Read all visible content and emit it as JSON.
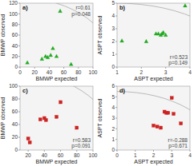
{
  "chart_data": [
    {
      "type": "scatter",
      "title": "a)",
      "xlabel": "BMWP expected",
      "ylabel": "BMWP observed",
      "x": [
        10,
        30,
        35,
        38,
        42,
        45,
        50,
        55,
        70
      ],
      "values": [
        8,
        15,
        20,
        18,
        22,
        35,
        20,
        105,
        5
      ],
      "color": "#22aa22",
      "marker": "triangle",
      "xlim": [
        0,
        100
      ],
      "ylim": [
        0,
        120
      ],
      "xticks": [
        0,
        20,
        40,
        60,
        80,
        100
      ],
      "yticks": [
        0,
        20,
        40,
        60,
        80,
        100,
        120
      ],
      "annotations": [
        "r=0.61",
        "p=0.048"
      ],
      "arc": {
        "cx": 0,
        "cy": 0,
        "radius": 130
      }
    },
    {
      "type": "scatter",
      "title": "b)",
      "xlabel": "ASPT expected",
      "ylabel": "ASPT observed",
      "x": [
        1.2,
        2.2,
        2.6,
        2.7,
        2.8,
        2.85,
        2.9,
        3.0,
        3.8
      ],
      "values": [
        2.05,
        2.0,
        2.6,
        2.6,
        2.5,
        2.6,
        2.7,
        2.5,
        4.8
      ],
      "color": "#22aa22",
      "marker": "triangle",
      "xlim": [
        1,
        4
      ],
      "ylim": [
        0,
        5
      ],
      "xticks": [
        1,
        2,
        3,
        4
      ],
      "yticks": [
        0,
        1,
        2,
        3,
        4,
        5
      ],
      "annotations": [
        "r=0.523",
        "p=0.149"
      ],
      "arc": {
        "cx": 1,
        "cy": 0,
        "radius": 5.0
      }
    },
    {
      "type": "scatter",
      "title": "c)",
      "xlabel": "BMWP expected",
      "ylabel": "BMWP observed",
      "x": [
        20,
        22,
        35,
        40,
        42,
        55,
        60,
        80
      ],
      "values": [
        18,
        12,
        48,
        50,
        47,
        52,
        75,
        35
      ],
      "color": "#cc2222",
      "marker": "square",
      "xlim": [
        10,
        100
      ],
      "ylim": [
        0,
        100
      ],
      "xticks": [
        20,
        40,
        60,
        80,
        100
      ],
      "yticks": [
        0,
        20,
        40,
        60,
        80,
        100
      ],
      "annotations": [
        "r=0.583",
        "p=0.091"
      ],
      "arc": {
        "cx": 10,
        "cy": 0,
        "radius": 120
      }
    },
    {
      "type": "scatter",
      "title": "d)",
      "xlabel": "ASPT expected",
      "ylabel": "ASPT observed",
      "x": [
        2.0,
        2.2,
        2.4,
        2.6,
        2.7,
        2.8,
        3.0,
        3.1,
        3.5
      ],
      "values": [
        2.3,
        2.2,
        2.1,
        3.6,
        3.5,
        3.5,
        4.9,
        3.4,
        2.5
      ],
      "color": "#cc2222",
      "marker": "square",
      "xlim": [
        0,
        4
      ],
      "ylim": [
        0,
        6
      ],
      "xticks": [
        0,
        1,
        2,
        3,
        4
      ],
      "yticks": [
        0,
        1,
        2,
        3,
        4,
        5,
        6
      ],
      "annotations": [
        "r=-0.288",
        "p=0.671"
      ],
      "arc": {
        "cx": 0,
        "cy": 0,
        "radius": 5.5
      }
    }
  ]
}
